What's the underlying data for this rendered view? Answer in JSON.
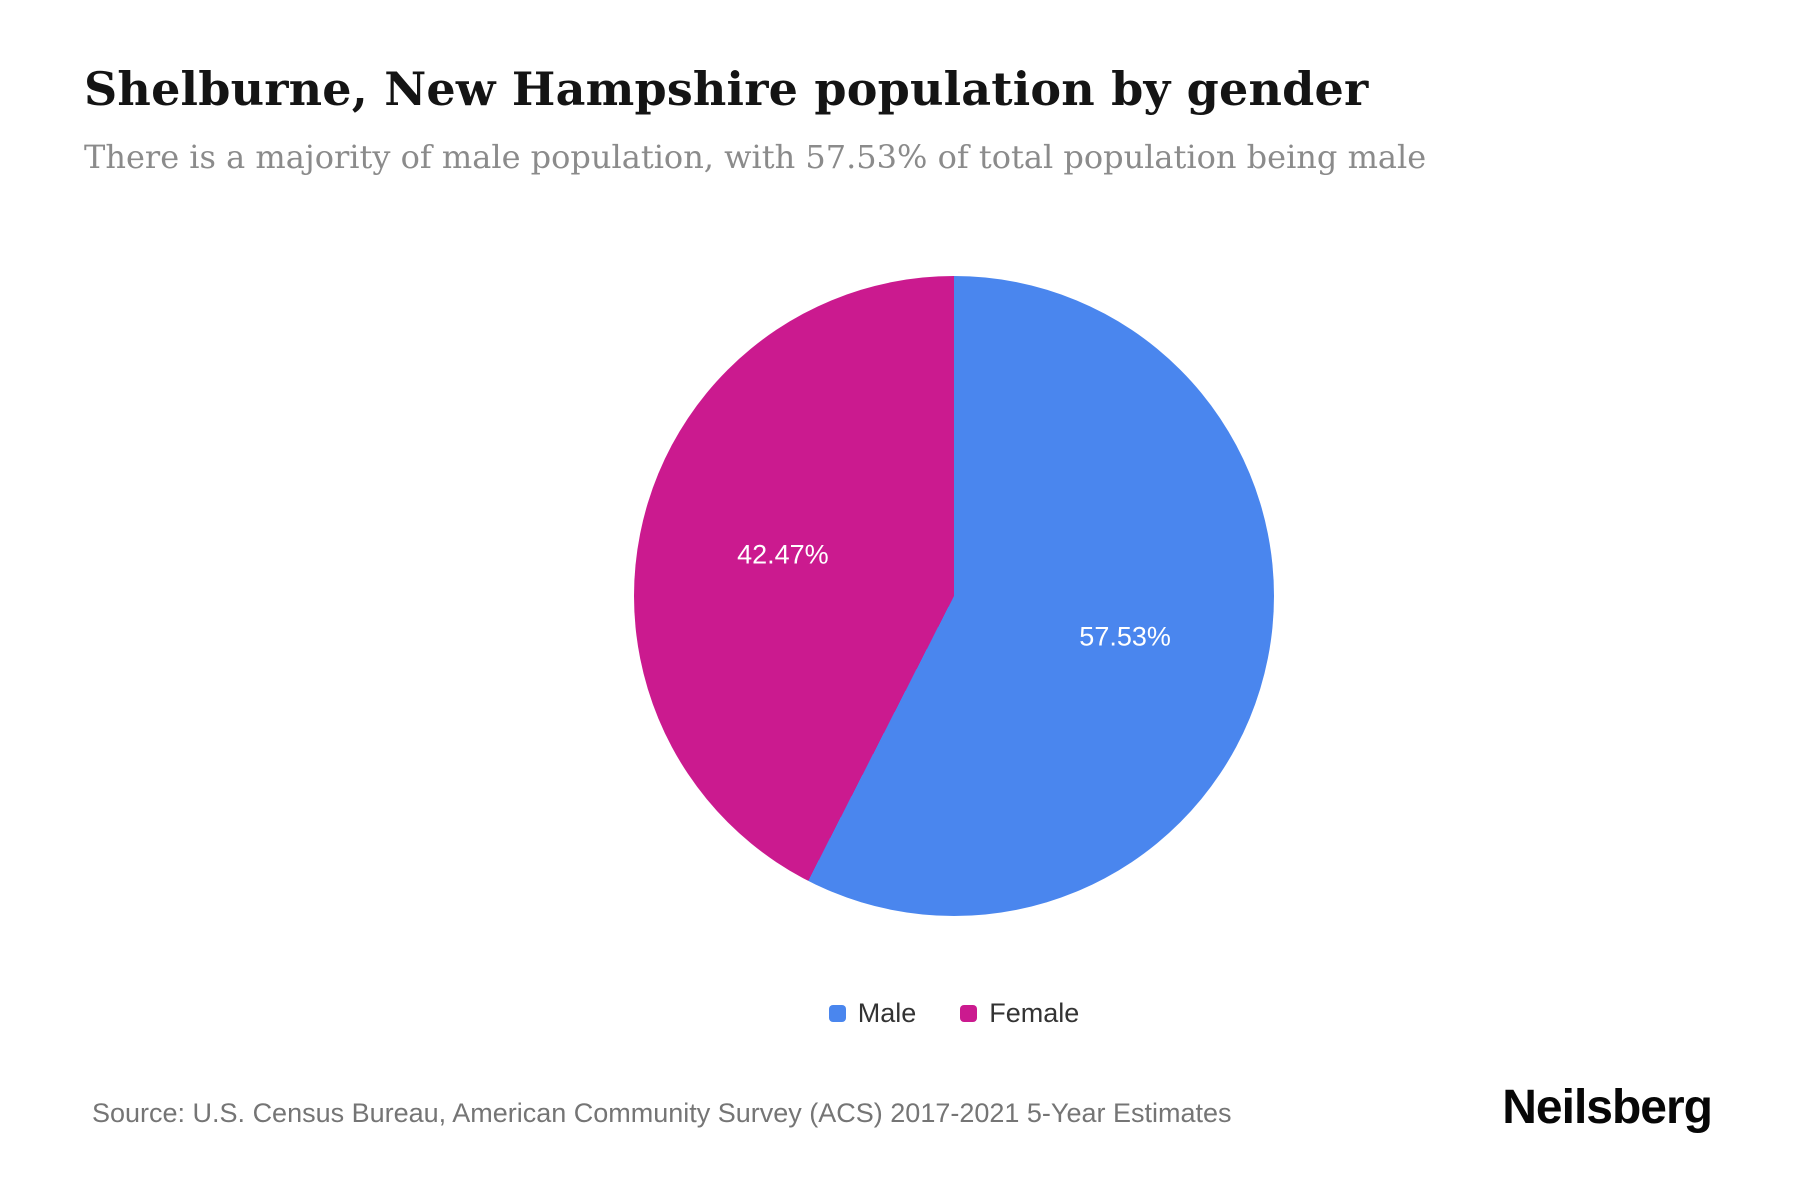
{
  "page": {
    "title": "Shelburne, New Hampshire population by gender",
    "subtitle": "There is a majority of male population, with 57.53% of total population being male",
    "source": "Source: U.S. Census Bureau, American Community Survey (ACS) 2017-2021 5-Year Estimates",
    "brand": "Neilsberg"
  },
  "chart_data": {
    "type": "pie",
    "title": "Shelburne, New Hampshire population by gender",
    "start_angle": "top",
    "direction": "clockwise",
    "legend_position": "bottom",
    "label_color": "#ffffff",
    "background_color": "#ffffff",
    "slices": [
      {
        "label": "Male",
        "value": 57.53,
        "display": "57.53%",
        "color": "#4a86ee"
      },
      {
        "label": "Female",
        "value": 42.47,
        "display": "42.47%",
        "color": "#cb1a8f"
      }
    ]
  }
}
